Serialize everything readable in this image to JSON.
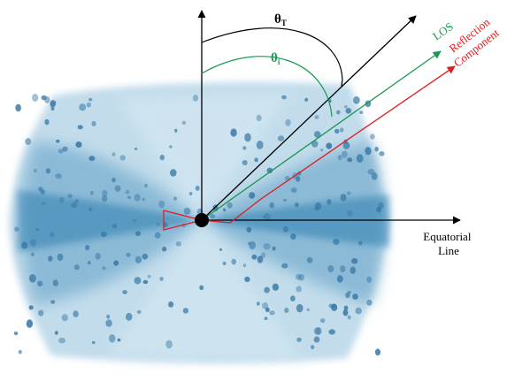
{
  "labels": {
    "theta_t": "θ",
    "theta_t_sub": "T",
    "theta_i": "θ",
    "theta_i_sub": "i",
    "los": "LOS",
    "reflection_line1": "Reflection",
    "reflection_line2": "Component",
    "equatorial_line1": "Equatorial",
    "equatorial_line2": "Line"
  },
  "colors": {
    "axis": "#000000",
    "los": "#1a9850",
    "reflection": "#e41a1c",
    "torus_light": "#a9cde2",
    "torus_mid": "#6aa7c9",
    "torus_dark": "#2f7fb0",
    "clump": "#3b7aa6"
  }
}
